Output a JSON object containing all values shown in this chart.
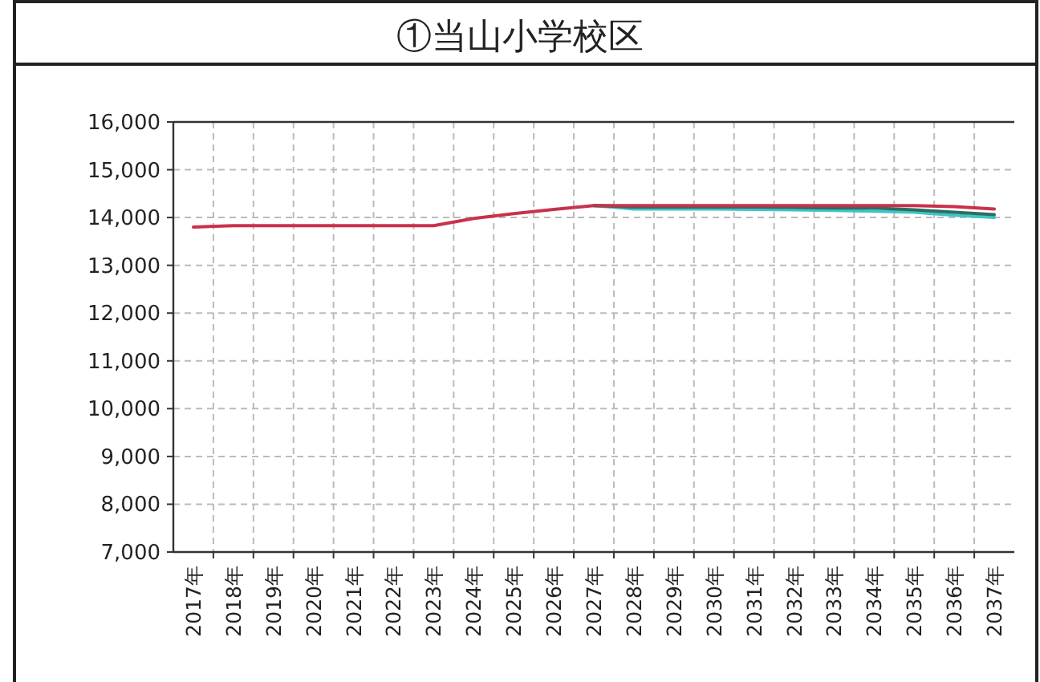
{
  "chart_data": {
    "type": "line",
    "title": "①当山小学校区",
    "categories": [
      "2017年",
      "2018年",
      "2019年",
      "2020年",
      "2021年",
      "2022年",
      "2023年",
      "2024年",
      "2025年",
      "2026年",
      "2027年",
      "2028年",
      "2029年",
      "2030年",
      "2031年",
      "2032年",
      "2033年",
      "2034年",
      "2035年",
      "2036年",
      "2037年"
    ],
    "series": [
      {
        "color": "#3fc4c8",
        "values": [
          null,
          null,
          null,
          null,
          null,
          null,
          null,
          null,
          null,
          null,
          14250,
          14180,
          14180,
          14180,
          14170,
          14160,
          14150,
          14130,
          14110,
          14050,
          14000
        ]
      },
      {
        "color": "#2e6e60",
        "values": [
          null,
          null,
          null,
          null,
          null,
          null,
          null,
          null,
          null,
          null,
          14250,
          14220,
          14220,
          14220,
          14220,
          14210,
          14200,
          14200,
          14160,
          14110,
          14060
        ]
      },
      {
        "color": "#c8324a",
        "values": [
          13800,
          13830,
          13830,
          13830,
          13830,
          13830,
          13830,
          13980,
          14080,
          14170,
          14250,
          14250,
          14250,
          14250,
          14250,
          14250,
          14250,
          14250,
          14250,
          14230,
          14180
        ]
      }
    ],
    "ylim": [
      7000,
      16000
    ],
    "yticks": [
      {
        "value": 7000,
        "label": "7,000"
      },
      {
        "value": 8000,
        "label": "8,000"
      },
      {
        "value": 9000,
        "label": "9,000"
      },
      {
        "value": 10000,
        "label": "10,000"
      },
      {
        "value": 11000,
        "label": "11,000"
      },
      {
        "value": 12000,
        "label": "12,000"
      },
      {
        "value": 13000,
        "label": "13,000"
      },
      {
        "value": 14000,
        "label": "14,000"
      },
      {
        "value": 15000,
        "label": "15,000"
      },
      {
        "value": 16000,
        "label": "16,000"
      }
    ],
    "grid": true,
    "marker": "none",
    "line_style": "solid"
  }
}
